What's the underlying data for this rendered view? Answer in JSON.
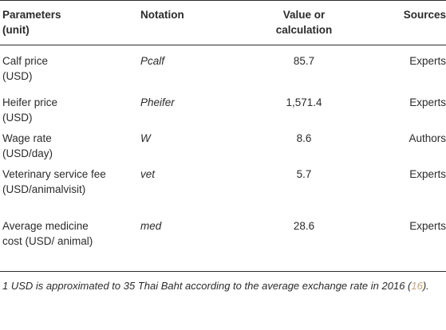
{
  "table": {
    "headers": {
      "param": "Parameters (unit)",
      "notation": "Notation",
      "value": "Value or calculation",
      "sources": "Sources"
    },
    "rows": [
      {
        "param": "Calf price (USD)",
        "notation": "Pcalf",
        "value": "85.7",
        "source": "Experts"
      },
      {
        "param": "Heifer price (USD)",
        "notation": "Pheifer",
        "value": "1,571.4",
        "source": "Experts"
      },
      {
        "param": "Wage rate (USD/day)",
        "notation": "W",
        "value": "8.6",
        "source": "Authors"
      },
      {
        "param": "Veterinary service fee (USD/animalvisit)",
        "notation": "vet",
        "value": "5.7",
        "source": "Experts"
      },
      {
        "param": "Average medicine cost (USD/ animal)",
        "notation": "med",
        "value": "28.6",
        "source": "Experts"
      }
    ]
  },
  "footnote": {
    "text": "1 USD is approximated to 35 Thai Baht according to the average exchange rate in 2016 (",
    "cite": "16",
    "end": ")."
  }
}
